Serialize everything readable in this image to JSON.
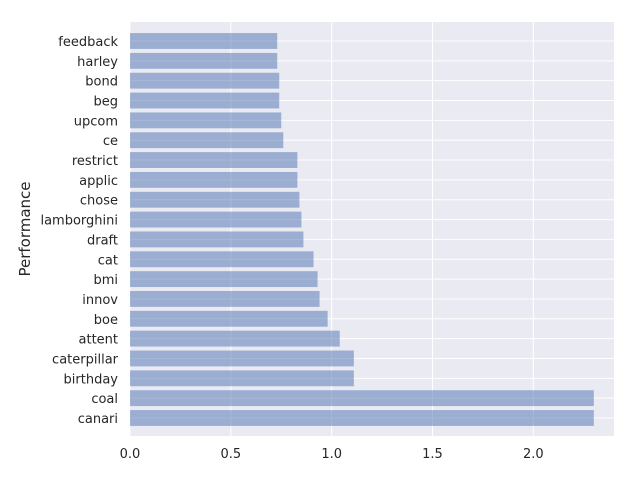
{
  "colors": {
    "bar": "#4c72b0",
    "plot_background": "#eaeaf2",
    "grid": "#ffffff"
  },
  "chart_data": {
    "type": "bar",
    "orientation": "horizontal",
    "title": "",
    "xlabel": "",
    "ylabel": "Performance",
    "xlim": [
      0,
      2.4
    ],
    "xticks": [
      0.0,
      0.5,
      1.0,
      1.5,
      2.0
    ],
    "xtick_labels": [
      "0.0",
      "0.5",
      "1.0",
      "1.5",
      "2.0"
    ],
    "grid": true,
    "bar_alpha": 0.5,
    "categories": [
      "canari",
      "coal",
      "birthday",
      "caterpillar",
      "attent",
      "boe",
      "innov",
      "bmi",
      "cat",
      "draft",
      "lamborghini",
      "chose",
      "applic",
      "restrict",
      "ce",
      "upcom",
      "beg",
      "bond",
      "harley",
      "feedback"
    ],
    "values": [
      2.3,
      2.3,
      1.11,
      1.11,
      1.04,
      0.98,
      0.94,
      0.93,
      0.91,
      0.86,
      0.85,
      0.84,
      0.83,
      0.83,
      0.76,
      0.75,
      0.74,
      0.74,
      0.73,
      0.73
    ]
  }
}
